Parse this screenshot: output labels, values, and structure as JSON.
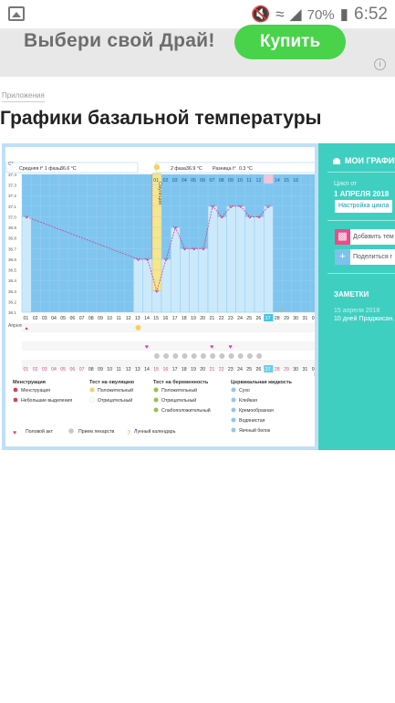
{
  "status_bar": {
    "battery": "70%",
    "time": "6:52"
  },
  "banner": {
    "text": "Выбери свой Драй!",
    "button": "Купить",
    "info": "i"
  },
  "breadcrumb": "Приложения",
  "page_title": "Графики базальной температуры",
  "chart_data": {
    "type": "line",
    "y_unit": "C°",
    "y_ticks": [
      "37.4",
      "37.3",
      "37.2",
      "37.1",
      "37.0",
      "36.9",
      "36.8",
      "36.7",
      "36.6",
      "36.5",
      "36.4",
      "36.3",
      "36.2",
      "36.1"
    ],
    "ylim": [
      36.1,
      37.4
    ],
    "header_phase1": "Средняя t° 1 фазы",
    "header_phase1_value": "36.6 °C",
    "header_phase2": "2 фаза",
    "header_phase2_value": "36.9 °C",
    "header_diff": "Разница t°",
    "header_diff_value": "0.3 °C",
    "ovulation_label": "Овуляция",
    "cycle_days_top": [
      "01",
      "02",
      "03",
      "04",
      "05",
      "06",
      "07",
      "08",
      "09",
      "10",
      "11",
      "12",
      "13",
      "14",
      "15",
      "16"
    ],
    "dates": [
      "01",
      "02",
      "03",
      "04",
      "05",
      "06",
      "07",
      "08",
      "09",
      "10",
      "11",
      "12",
      "13",
      "14",
      "15",
      "16",
      "17",
      "18",
      "19",
      "20",
      "21",
      "22",
      "23",
      "24",
      "25",
      "26",
      "27",
      "28",
      "29",
      "30",
      "31",
      "01"
    ],
    "dates_bottom": [
      "01",
      "02",
      "03",
      "04",
      "05",
      "06",
      "07",
      "08",
      "09",
      "10",
      "11",
      "12",
      "13",
      "14",
      "15",
      "16",
      "17",
      "18",
      "19",
      "20",
      "21",
      "22",
      "23",
      "24",
      "25",
      "26",
      "27",
      "28",
      "29",
      "30",
      "31",
      "01"
    ],
    "month_start": "Апрель",
    "month_end": "Ма",
    "temperatures": [
      {
        "day": 1,
        "value": 37.0
      },
      {
        "day": 13,
        "value": 36.6
      },
      {
        "day": 14,
        "value": 36.6
      },
      {
        "day": 15,
        "value": 36.3
      },
      {
        "day": 16,
        "value": 36.6
      },
      {
        "day": 17,
        "value": 36.9
      },
      {
        "day": 18,
        "value": 36.7
      },
      {
        "day": 19,
        "value": 36.7
      },
      {
        "day": 20,
        "value": 36.7
      },
      {
        "day": 21,
        "value": 37.1
      },
      {
        "day": 22,
        "value": 37.0
      },
      {
        "day": 23,
        "value": 37.1
      },
      {
        "day": 24,
        "value": 37.1
      },
      {
        "day": 25,
        "value": 37.0
      },
      {
        "day": 26,
        "value": 37.0
      },
      {
        "day": 27,
        "value": 37.1
      }
    ],
    "ovulation_day": 15,
    "legend": {
      "menstruation_title": "Менструация",
      "menstruation": [
        "Менструация",
        "Небольшие выделения"
      ],
      "ovulation_title": "Тест на овуляцию",
      "ovulation": [
        "Положительный",
        "Отрицательный"
      ],
      "pregnancy_title": "Тест на беременность",
      "pregnancy": [
        "Положительный",
        "Отрицательный",
        "Слабоположительный"
      ],
      "cervical_title": "Цервикальная жидкость",
      "cervical": [
        "Сухо",
        "Клейкая",
        "Кремообразная",
        "Водянистая",
        "Яичный белок"
      ],
      "other": [
        "Половой акт",
        "Прием лекарств",
        "Лунный календарь"
      ]
    },
    "colors": {
      "bar": "#cce9fb",
      "line": "#d0418b",
      "ovulation": "#f7e68a",
      "header": "#7fc5ef",
      "accent": "#42c4e8"
    }
  },
  "side_panel": {
    "my_charts": "МОИ ГРАФИКИ",
    "cycle_from_label": "Цикл от",
    "cycle_date": "1 АПРЕЛЯ 2018",
    "settings_button": "Настройка цикла",
    "add_button": "Добавить тем",
    "share_button": "Поделиться г",
    "notes_title": "ЗАМЕТКИ",
    "note_date": "15 апреля 2018",
    "note_text": "10 дней Праджисан."
  }
}
